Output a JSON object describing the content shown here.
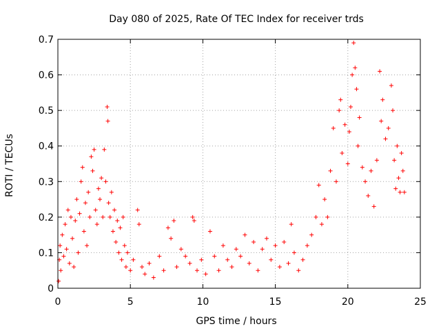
{
  "chart_data": {
    "type": "scatter",
    "title": "Day 080 of 2025, Rate Of TEC Index for receiver trds",
    "xlabel": "GPS time / hours",
    "ylabel": "ROTI / TECUs",
    "xlim": [
      0,
      25
    ],
    "ylim": [
      0,
      0.7
    ],
    "xticks": [
      "0",
      "5",
      "10",
      "15",
      "20",
      "25"
    ],
    "yticks": [
      "0",
      "0.1",
      "0.2",
      "0.3",
      "0.4",
      "0.5",
      "0.6",
      "0.7"
    ],
    "grid": true,
    "legend": "none",
    "marker": "+",
    "color": "#ff0000",
    "points": [
      [
        0.05,
        0.02
      ],
      [
        0.1,
        0.08
      ],
      [
        0.15,
        0.12
      ],
      [
        0.2,
        0.05
      ],
      [
        0.3,
        0.15
      ],
      [
        0.4,
        0.09
      ],
      [
        0.5,
        0.18
      ],
      [
        0.6,
        0.11
      ],
      [
        0.7,
        0.22
      ],
      [
        0.8,
        0.07
      ],
      [
        0.9,
        0.2
      ],
      [
        1.0,
        0.14
      ],
      [
        1.1,
        0.06
      ],
      [
        1.2,
        0.19
      ],
      [
        1.3,
        0.25
      ],
      [
        1.4,
        0.1
      ],
      [
        1.5,
        0.21
      ],
      [
        1.6,
        0.3
      ],
      [
        1.7,
        0.34
      ],
      [
        1.8,
        0.16
      ],
      [
        1.9,
        0.24
      ],
      [
        2.0,
        0.12
      ],
      [
        2.1,
        0.27
      ],
      [
        2.2,
        0.2
      ],
      [
        2.3,
        0.37
      ],
      [
        2.4,
        0.33
      ],
      [
        2.5,
        0.39
      ],
      [
        2.6,
        0.22
      ],
      [
        2.7,
        0.18
      ],
      [
        2.8,
        0.28
      ],
      [
        2.9,
        0.25
      ],
      [
        3.0,
        0.31
      ],
      [
        3.1,
        0.2
      ],
      [
        3.2,
        0.39
      ],
      [
        3.3,
        0.3
      ],
      [
        3.4,
        0.51
      ],
      [
        3.45,
        0.47
      ],
      [
        3.5,
        0.24
      ],
      [
        3.6,
        0.2
      ],
      [
        3.7,
        0.27
      ],
      [
        3.8,
        0.16
      ],
      [
        3.9,
        0.22
      ],
      [
        4.0,
        0.13
      ],
      [
        4.1,
        0.19
      ],
      [
        4.2,
        0.1
      ],
      [
        4.3,
        0.17
      ],
      [
        4.4,
        0.08
      ],
      [
        4.5,
        0.2
      ],
      [
        4.6,
        0.12
      ],
      [
        4.7,
        0.06
      ],
      [
        4.8,
        0.1
      ],
      [
        5.0,
        0.05
      ],
      [
        5.2,
        0.08
      ],
      [
        5.5,
        0.22
      ],
      [
        5.6,
        0.18
      ],
      [
        5.8,
        0.06
      ],
      [
        6.0,
        0.04
      ],
      [
        6.3,
        0.07
      ],
      [
        6.6,
        0.03
      ],
      [
        7.0,
        0.09
      ],
      [
        7.3,
        0.05
      ],
      [
        7.6,
        0.17
      ],
      [
        7.8,
        0.14
      ],
      [
        8.0,
        0.19
      ],
      [
        8.2,
        0.06
      ],
      [
        8.5,
        0.11
      ],
      [
        8.8,
        0.09
      ],
      [
        9.1,
        0.07
      ],
      [
        9.3,
        0.2
      ],
      [
        9.4,
        0.19
      ],
      [
        9.6,
        0.05
      ],
      [
        9.9,
        0.08
      ],
      [
        10.2,
        0.04
      ],
      [
        10.5,
        0.16
      ],
      [
        10.8,
        0.09
      ],
      [
        11.1,
        0.05
      ],
      [
        11.4,
        0.12
      ],
      [
        11.7,
        0.08
      ],
      [
        12.0,
        0.06
      ],
      [
        12.3,
        0.11
      ],
      [
        12.6,
        0.09
      ],
      [
        12.9,
        0.15
      ],
      [
        13.2,
        0.07
      ],
      [
        13.5,
        0.13
      ],
      [
        13.8,
        0.05
      ],
      [
        14.1,
        0.11
      ],
      [
        14.4,
        0.14
      ],
      [
        14.7,
        0.08
      ],
      [
        15.0,
        0.12
      ],
      [
        15.3,
        0.06
      ],
      [
        15.6,
        0.13
      ],
      [
        15.9,
        0.07
      ],
      [
        16.1,
        0.18
      ],
      [
        16.3,
        0.1
      ],
      [
        16.6,
        0.05
      ],
      [
        16.9,
        0.08
      ],
      [
        17.2,
        0.12
      ],
      [
        17.5,
        0.15
      ],
      [
        17.8,
        0.2
      ],
      [
        18.0,
        0.29
      ],
      [
        18.2,
        0.18
      ],
      [
        18.4,
        0.25
      ],
      [
        18.6,
        0.2
      ],
      [
        18.8,
        0.33
      ],
      [
        19.0,
        0.45
      ],
      [
        19.2,
        0.3
      ],
      [
        19.4,
        0.5
      ],
      [
        19.5,
        0.53
      ],
      [
        19.6,
        0.38
      ],
      [
        19.8,
        0.46
      ],
      [
        20.0,
        0.35
      ],
      [
        20.1,
        0.44
      ],
      [
        20.2,
        0.51
      ],
      [
        20.3,
        0.6
      ],
      [
        20.4,
        0.69
      ],
      [
        20.5,
        0.62
      ],
      [
        20.6,
        0.56
      ],
      [
        20.7,
        0.4
      ],
      [
        20.8,
        0.48
      ],
      [
        21.0,
        0.34
      ],
      [
        21.2,
        0.3
      ],
      [
        21.4,
        0.26
      ],
      [
        21.6,
        0.33
      ],
      [
        21.8,
        0.23
      ],
      [
        22.0,
        0.36
      ],
      [
        22.2,
        0.61
      ],
      [
        22.3,
        0.47
      ],
      [
        22.4,
        0.53
      ],
      [
        22.6,
        0.42
      ],
      [
        22.8,
        0.45
      ],
      [
        23.0,
        0.57
      ],
      [
        23.1,
        0.5
      ],
      [
        23.2,
        0.36
      ],
      [
        23.3,
        0.28
      ],
      [
        23.4,
        0.4
      ],
      [
        23.5,
        0.31
      ],
      [
        23.6,
        0.27
      ],
      [
        23.7,
        0.38
      ],
      [
        23.8,
        0.33
      ],
      [
        23.9,
        0.27
      ]
    ]
  }
}
